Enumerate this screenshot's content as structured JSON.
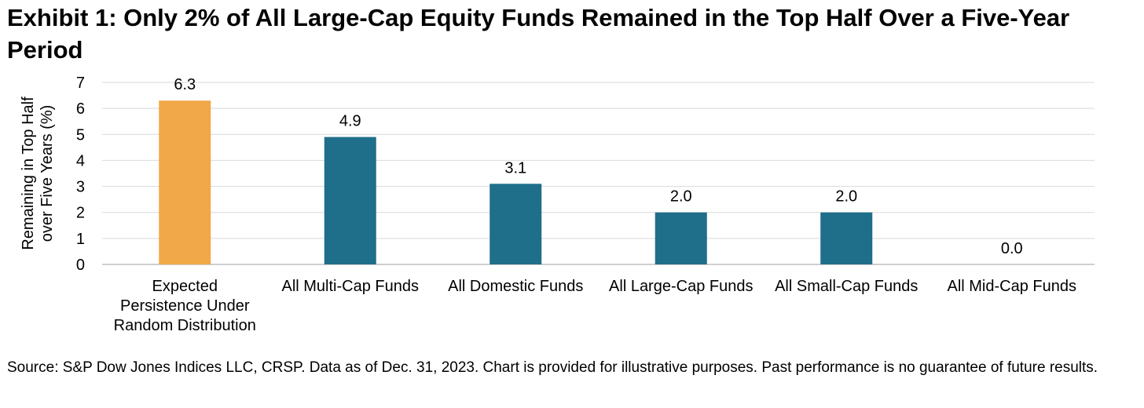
{
  "title": "Exhibit 1: Only 2% of All Large-Cap Equity Funds Remained in the Top Half Over a Five-Year Period",
  "source": "Source: S&P Dow Jones Indices LLC, CRSP.  Data as of Dec. 31, 2023.  Chart is provided for illustrative purposes.  Past performance is no guarantee of future results.",
  "colors": {
    "expected": "#F0A848",
    "funds": "#1F6E8A",
    "grid": "#D9D9D9",
    "axis": "#BFBFBF"
  },
  "chart_data": {
    "type": "bar",
    "categories": [
      [
        "Expected",
        "Persistence Under",
        "Random Distribution"
      ],
      [
        "All Multi-Cap Funds"
      ],
      [
        "All Domestic Funds"
      ],
      [
        "All Large-Cap Funds"
      ],
      [
        "All Small-Cap Funds"
      ],
      [
        "All Mid-Cap Funds"
      ]
    ],
    "values": [
      6.3,
      4.9,
      3.1,
      2.0,
      2.0,
      0.0
    ],
    "data_labels": [
      "6.3",
      "4.9",
      "3.1",
      "2.0",
      "2.0",
      "0.0"
    ],
    "bar_colors": [
      "#F0A848",
      "#1F6E8A",
      "#1F6E8A",
      "#1F6E8A",
      "#1F6E8A",
      "#1F6E8A"
    ],
    "ylabel": [
      "Remaining in Top Half",
      "over Five Years (%)"
    ],
    "ylim": [
      0,
      7
    ],
    "yticks": [
      0,
      1,
      2,
      3,
      4,
      5,
      6,
      7
    ],
    "grid": true,
    "legend": "none"
  }
}
